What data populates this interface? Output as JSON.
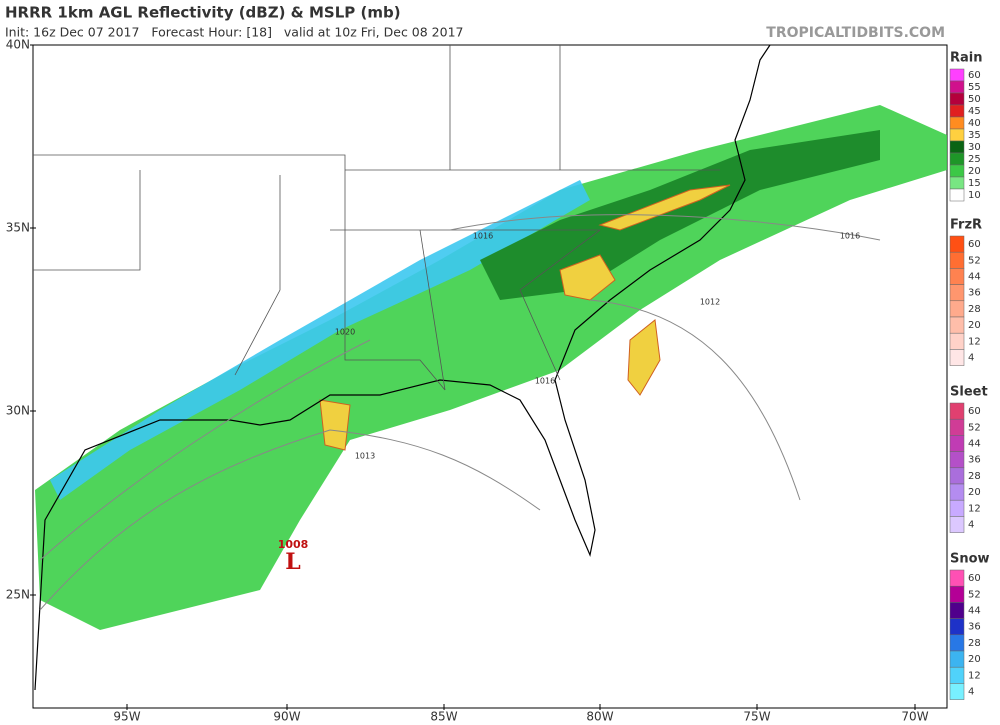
{
  "header": {
    "title": "HRRR 1km AGL Reflectivity (dBZ) & MSLP (mb)",
    "subtitle": "Init: 16z Dec 07 2017   Forecast Hour: [18]   valid at 10z Fri, Dec 08 2017",
    "credit": "TROPICALTIDBITS.COM"
  },
  "map": {
    "lat_labels": [
      "40N",
      "35N",
      "30N",
      "25N"
    ],
    "lon_labels": [
      "95W",
      "90W",
      "85W",
      "80W",
      "75W",
      "70W"
    ],
    "isobar_labels": [
      "1016",
      "1020",
      "1012",
      "1013",
      "1016",
      "1016",
      "1008"
    ],
    "low_label": "L"
  },
  "legend": [
    {
      "name": "Rain",
      "levels": [
        60,
        55,
        50,
        45,
        40,
        35,
        30,
        25,
        20,
        15,
        10
      ]
    },
    {
      "name": "FrzR",
      "levels": [
        60,
        52,
        44,
        36,
        28,
        20,
        12,
        4
      ]
    },
    {
      "name": "Sleet",
      "levels": [
        60,
        52,
        44,
        36,
        28,
        20,
        12,
        4
      ]
    },
    {
      "name": "Snow",
      "levels": [
        60,
        52,
        44,
        36,
        28,
        20,
        12,
        4
      ]
    }
  ]
}
